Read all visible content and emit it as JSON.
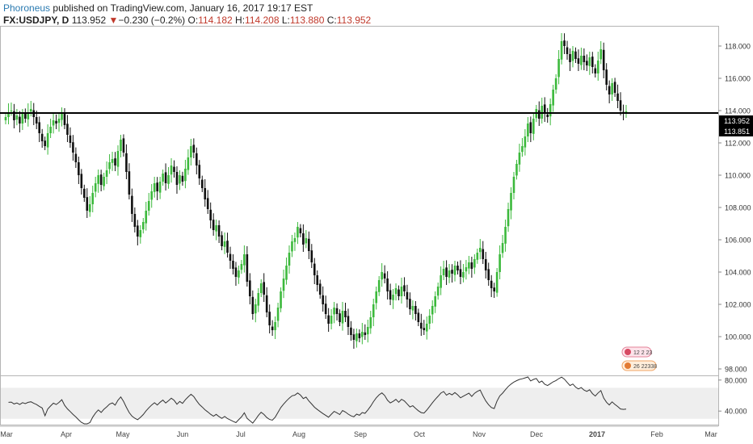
{
  "header": {
    "author": "Phoroneus",
    "published": "published on TradingView.com, January 16, 2017 19:17 EST",
    "symbol": "FX:USDJPY, D",
    "last": "113.952",
    "arrow": "▼",
    "change": "−0.230 (−0.2%)",
    "o_label": "O:",
    "o": "114.182",
    "h_label": "H:",
    "h": "114.208",
    "l_label": "L:",
    "l": "113.880",
    "c_label": "C:",
    "c": "113.952"
  },
  "colors": {
    "up": "#3cb93c",
    "down": "#111111",
    "line": "#000000",
    "rsi": "#333333"
  },
  "price_labels": {
    "last": "113.952",
    "line": "113.851"
  },
  "events": {
    "e1": "12 2 23",
    "e2": "26 22338"
  },
  "chart_data": [
    {
      "type": "candlestick",
      "title": "",
      "ylim": [
        97.6,
        119.2
      ],
      "yticks": [
        "118.000",
        "116.000",
        "114.000",
        "112.000",
        "110.000",
        "108.000",
        "106.000",
        "104.000",
        "102.000",
        "100.000",
        "98.000"
      ],
      "xticks": [
        "Mar",
        "Apr",
        "May",
        "Jun",
        "Jul",
        "Aug",
        "Sep",
        "Oct",
        "Nov",
        "Dec",
        "2017",
        "Feb",
        "Mar"
      ],
      "horizontal_line": 113.851,
      "closes": [
        113.6,
        113.9,
        114.0,
        113.4,
        113.7,
        113.2,
        113.8,
        113.5,
        113.9,
        114.1,
        113.6,
        113.2,
        112.6,
        112.1,
        111.8,
        112.6,
        113.0,
        113.4,
        113.2,
        113.5,
        113.9,
        113.1,
        112.5,
        112.0,
        111.4,
        110.8,
        110.0,
        109.2,
        108.6,
        107.8,
        108.2,
        108.9,
        109.5,
        110.0,
        109.4,
        109.9,
        110.3,
        110.8,
        111.0,
        110.6,
        111.5,
        112.2,
        111.4,
        110.2,
        108.8,
        107.6,
        106.8,
        106.2,
        106.6,
        107.1,
        107.8,
        108.4,
        109.0,
        109.5,
        109.0,
        109.6,
        110.1,
        109.5,
        110.0,
        110.6,
        110.2,
        109.4,
        110.0,
        109.6,
        110.4,
        111.1,
        111.8,
        111.4,
        110.6,
        109.8,
        109.2,
        108.5,
        107.9,
        107.2,
        106.6,
        106.9,
        106.2,
        105.6,
        105.9,
        105.2,
        104.7,
        104.2,
        103.7,
        104.1,
        104.5,
        105.1,
        103.4,
        102.5,
        101.4,
        102.0,
        102.7,
        103.3,
        102.6,
        101.5,
        100.7,
        100.4,
        100.9,
        101.8,
        102.8,
        103.6,
        104.4,
        105.2,
        105.9,
        106.1,
        106.8,
        106.4,
        105.7,
        106.1,
        105.3,
        104.6,
        103.8,
        103.2,
        102.6,
        102.0,
        101.4,
        100.8,
        101.3,
        101.8,
        101.4,
        100.9,
        101.6,
        101.2,
        100.6,
        100.1,
        99.8,
        100.2,
        99.9,
        100.3,
        100.1,
        100.6,
        101.2,
        102.0,
        102.8,
        103.5,
        104.0,
        103.6,
        102.8,
        102.3,
        102.6,
        103.0,
        102.5,
        103.1,
        102.8,
        102.3,
        101.7,
        101.9,
        101.4,
        100.9,
        100.5,
        100.4,
        100.8,
        101.3,
        101.9,
        102.5,
        103.1,
        103.8,
        104.2,
        103.7,
        104.1,
        103.9,
        104.4,
        104.1,
        103.7,
        104.0,
        104.3,
        104.6,
        104.2,
        104.8,
        105.2,
        105.5,
        104.8,
        104.1,
        103.5,
        103.0,
        102.8,
        104.0,
        105.1,
        105.8,
        106.8,
        107.9,
        108.9,
        109.9,
        110.7,
        111.4,
        111.8,
        112.4,
        113.2,
        112.6,
        113.5,
        114.1,
        113.5,
        114.3,
        113.8,
        113.6,
        114.4,
        115.3,
        116.0,
        117.2,
        118.3,
        118.0,
        117.5,
        117.0,
        117.7,
        117.2,
        116.9,
        117.4,
        117.0,
        116.8,
        117.3,
        116.7,
        116.3,
        117.1,
        117.8,
        116.5,
        115.6,
        115.0,
        115.7,
        115.1,
        114.6,
        114.0,
        113.9,
        113.952
      ],
      "rsi": {
        "ylim": [
          22.5,
          85
        ],
        "yticks": [
          "80.000",
          "40.000"
        ],
        "band": [
          30,
          70
        ]
      }
    }
  ]
}
